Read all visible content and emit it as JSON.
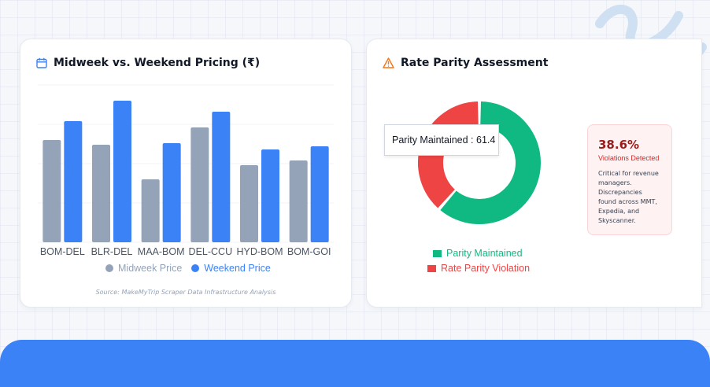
{
  "pricing_card": {
    "title": "Midweek vs. Weekend Pricing (₹)",
    "icon": "calendar-icon",
    "source": "Source: MakeMyTrip Scraper Data Infrastructure Analysis",
    "legend": {
      "midweek": "Midweek Price",
      "weekend": "Weekend Price"
    }
  },
  "parity_card": {
    "title": "Rate Parity Assessment",
    "icon": "warning-icon",
    "tooltip": "Parity Maintained : 61.4",
    "legend": {
      "maintained": "Parity Maintained",
      "violation": "Rate Parity Violation"
    },
    "alert": {
      "percent": "38.6%",
      "label": "Violations Detected",
      "description": "Critical for revenue managers. Discrepancies found across MMT, Expedia, and Skyscanner."
    }
  },
  "colors": {
    "midweek": "#94a3b8",
    "weekend": "#3b82f6",
    "maintained": "#10b981",
    "violation": "#ef4444",
    "accent_blue": "#3b82f6",
    "warning": "#f97316"
  },
  "chart_data": [
    {
      "type": "bar",
      "title": "Midweek vs. Weekend Pricing (₹)",
      "categories": [
        "BOM-DEL",
        "BLR-DEL",
        "MAA-BOM",
        "DEL-CCU",
        "HYD-BOM",
        "BOM-GOI"
      ],
      "series": [
        {
          "name": "Midweek Price",
          "values": [
            65,
            62,
            40,
            73,
            49,
            52
          ]
        },
        {
          "name": "Weekend Price",
          "values": [
            77,
            90,
            63,
            83,
            59,
            61
          ]
        }
      ],
      "ylim": [
        0,
        100
      ],
      "grid": true,
      "legend": "bottom"
    },
    {
      "type": "pie",
      "title": "Rate Parity Assessment",
      "labels": [
        "Parity Maintained",
        "Rate Parity Violation"
      ],
      "values": [
        61.4,
        38.6
      ],
      "legend": "bottom"
    }
  ]
}
